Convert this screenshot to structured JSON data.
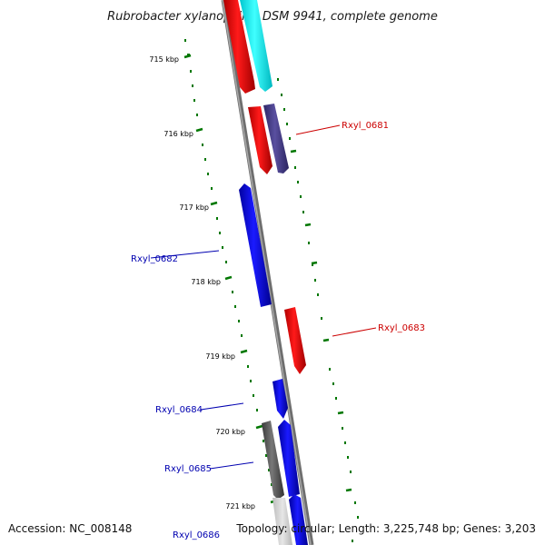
{
  "title": "Rubrobacter xylanophilus DSM 9941, complete genome",
  "footer": {
    "accession": "Accession: NC_008148",
    "topology": "Topology: circular; Length: 3,225,748 bp; Genes: 3,203"
  },
  "ruler": {
    "ticks": [
      "715 kbp",
      "716 kbp",
      "717 kbp",
      "718 kbp",
      "719 kbp",
      "720 kbp",
      "721 kbp"
    ]
  },
  "genes": [
    {
      "label": "Rxyl_0681",
      "color": "#cc0000"
    },
    {
      "label": "Rxyl_0682",
      "color": "#0000b0"
    },
    {
      "label": "Rxyl_0683",
      "color": "#cc0000"
    },
    {
      "label": "Rxyl_0684",
      "color": "#0000b0"
    },
    {
      "label": "Rxyl_0685",
      "color": "#0000b0"
    },
    {
      "label": "Rxyl_0686",
      "color": "#0000b0"
    }
  ],
  "colors": {
    "forward_strand": "#ff0000",
    "reverse_strand": "#0000ff",
    "cyan_feature": "#00e5ee",
    "purple_feature": "#483d8b",
    "gray_feature": "#555555",
    "backbone": "#808080",
    "ruler_tick": "#007700"
  }
}
